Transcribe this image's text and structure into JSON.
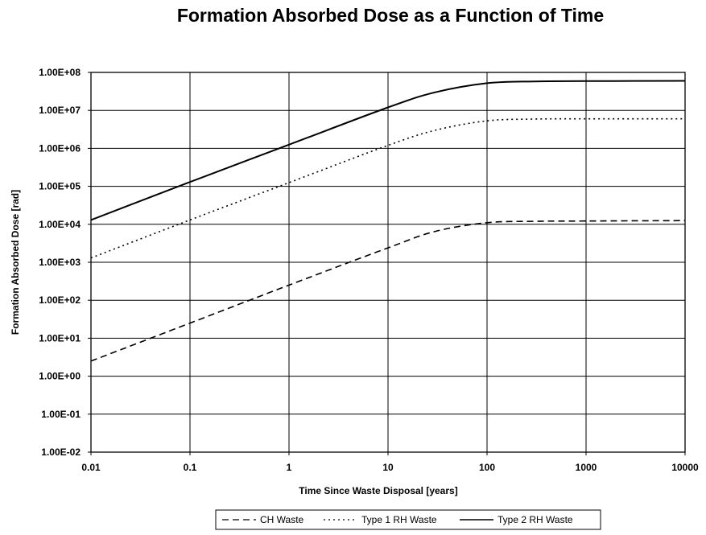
{
  "chart_data": {
    "type": "line",
    "title": "Formation Absorbed Dose as a Function of Time",
    "xlabel": "Time Since Waste Disposal [years]",
    "ylabel": "Formation Absorbed Dose [rad]",
    "x_scale": "log",
    "y_scale": "log",
    "xlim": [
      0.01,
      10000
    ],
    "ylim": [
      0.01,
      100000000
    ],
    "x_ticks": [
      "0.01",
      "0.1",
      "1",
      "10",
      "100",
      "1000",
      "10000"
    ],
    "y_ticks": [
      "1.00E-02",
      "1.00E-01",
      "1.00E+00",
      "1.00E+01",
      "1.00E+02",
      "1.00E+03",
      "1.00E+04",
      "1.00E+05",
      "1.00E+06",
      "1.00E+07",
      "1.00E+08"
    ],
    "grid": true,
    "legend_position": "bottom",
    "series": [
      {
        "name": "CH Waste",
        "style": "dashed",
        "color": "#000000",
        "x": [
          0.01,
          0.1,
          1,
          10,
          30,
          100,
          300,
          1000,
          10000
        ],
        "y": [
          2.5,
          25,
          250,
          2400,
          6500,
          11000,
          12000,
          12200,
          12500
        ]
      },
      {
        "name": "Type 1 RH Waste",
        "style": "dotted",
        "color": "#000000",
        "x": [
          0.01,
          0.1,
          1,
          10,
          30,
          100,
          300,
          1000,
          10000
        ],
        "y": [
          1300,
          13000,
          125000,
          1200000,
          3000000,
          5300000,
          5900000,
          6000000,
          6000000
        ]
      },
      {
        "name": "Type 2 RH Waste",
        "style": "solid",
        "color": "#000000",
        "x": [
          0.01,
          0.1,
          1,
          10,
          30,
          100,
          300,
          1000,
          10000
        ],
        "y": [
          13000,
          130000,
          1250000,
          12000000,
          30000000,
          52000000,
          58000000,
          59000000,
          60000000
        ]
      }
    ]
  }
}
